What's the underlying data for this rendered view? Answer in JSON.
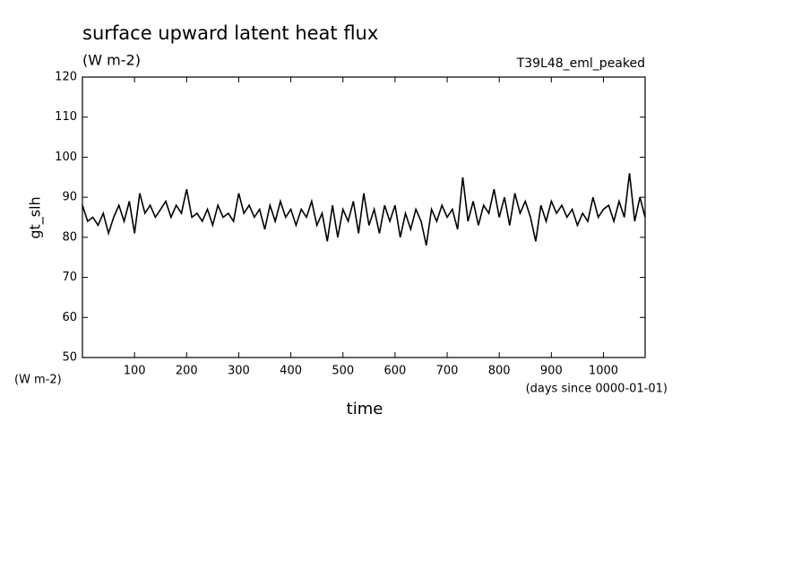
{
  "chart_data": {
    "type": "line",
    "title": "surface upward latent heat flux",
    "subtitle": "(W m-2)",
    "experiment": "T39L48_eml_peaked",
    "y_label": "gt_slh",
    "y_units": "(W m-2)",
    "x_label": "time",
    "x_units": "(days since 0000-01-01)",
    "color": "#000000",
    "x": [
      0,
      10,
      20,
      30,
      40,
      50,
      60,
      70,
      80,
      90,
      100,
      110,
      120,
      130,
      140,
      150,
      160,
      170,
      180,
      190,
      200,
      210,
      220,
      230,
      240,
      250,
      260,
      270,
      280,
      290,
      300,
      310,
      320,
      330,
      340,
      350,
      360,
      370,
      380,
      390,
      400,
      410,
      420,
      430,
      440,
      450,
      460,
      470,
      480,
      490,
      500,
      510,
      520,
      530,
      540,
      550,
      560,
      570,
      580,
      590,
      600,
      610,
      620,
      630,
      640,
      650,
      660,
      670,
      680,
      690,
      700,
      710,
      720,
      730,
      740,
      750,
      760,
      770,
      780,
      790,
      800,
      810,
      820,
      830,
      840,
      850,
      860,
      870,
      880,
      890,
      900,
      910,
      920,
      930,
      940,
      950,
      960,
      970,
      980,
      990,
      1000,
      1010,
      1020,
      1030,
      1040,
      1050,
      1060,
      1070,
      1080
    ],
    "values": [
      88,
      84,
      85,
      83,
      86,
      81,
      85,
      88,
      84,
      89,
      81,
      91,
      86,
      88,
      85,
      87,
      89,
      85,
      88,
      86,
      92,
      85,
      86,
      84,
      87,
      83,
      88,
      85,
      86,
      84,
      91,
      86,
      88,
      85,
      87,
      82,
      88,
      84,
      89,
      85,
      87,
      83,
      87,
      85,
      89,
      83,
      86,
      79,
      88,
      80,
      87,
      84,
      89,
      81,
      91,
      83,
      87,
      81,
      88,
      84,
      88,
      80,
      86,
      82,
      87,
      84,
      78,
      87,
      84,
      88,
      85,
      87,
      82,
      95,
      84,
      89,
      83,
      88,
      86,
      92,
      85,
      90,
      83,
      91,
      86,
      89,
      85,
      79,
      88,
      84,
      89,
      86,
      88,
      85,
      87,
      83,
      86,
      84,
      90,
      85,
      87,
      88,
      84,
      89,
      85,
      96,
      84,
      90,
      85
    ],
    "xlim": [
      0,
      1080
    ],
    "ylim": [
      50,
      120
    ],
    "xticks": [
      100,
      200,
      300,
      400,
      500,
      600,
      700,
      800,
      900,
      1000
    ],
    "yticks": [
      50,
      60,
      70,
      80,
      90,
      100,
      110,
      120
    ]
  }
}
